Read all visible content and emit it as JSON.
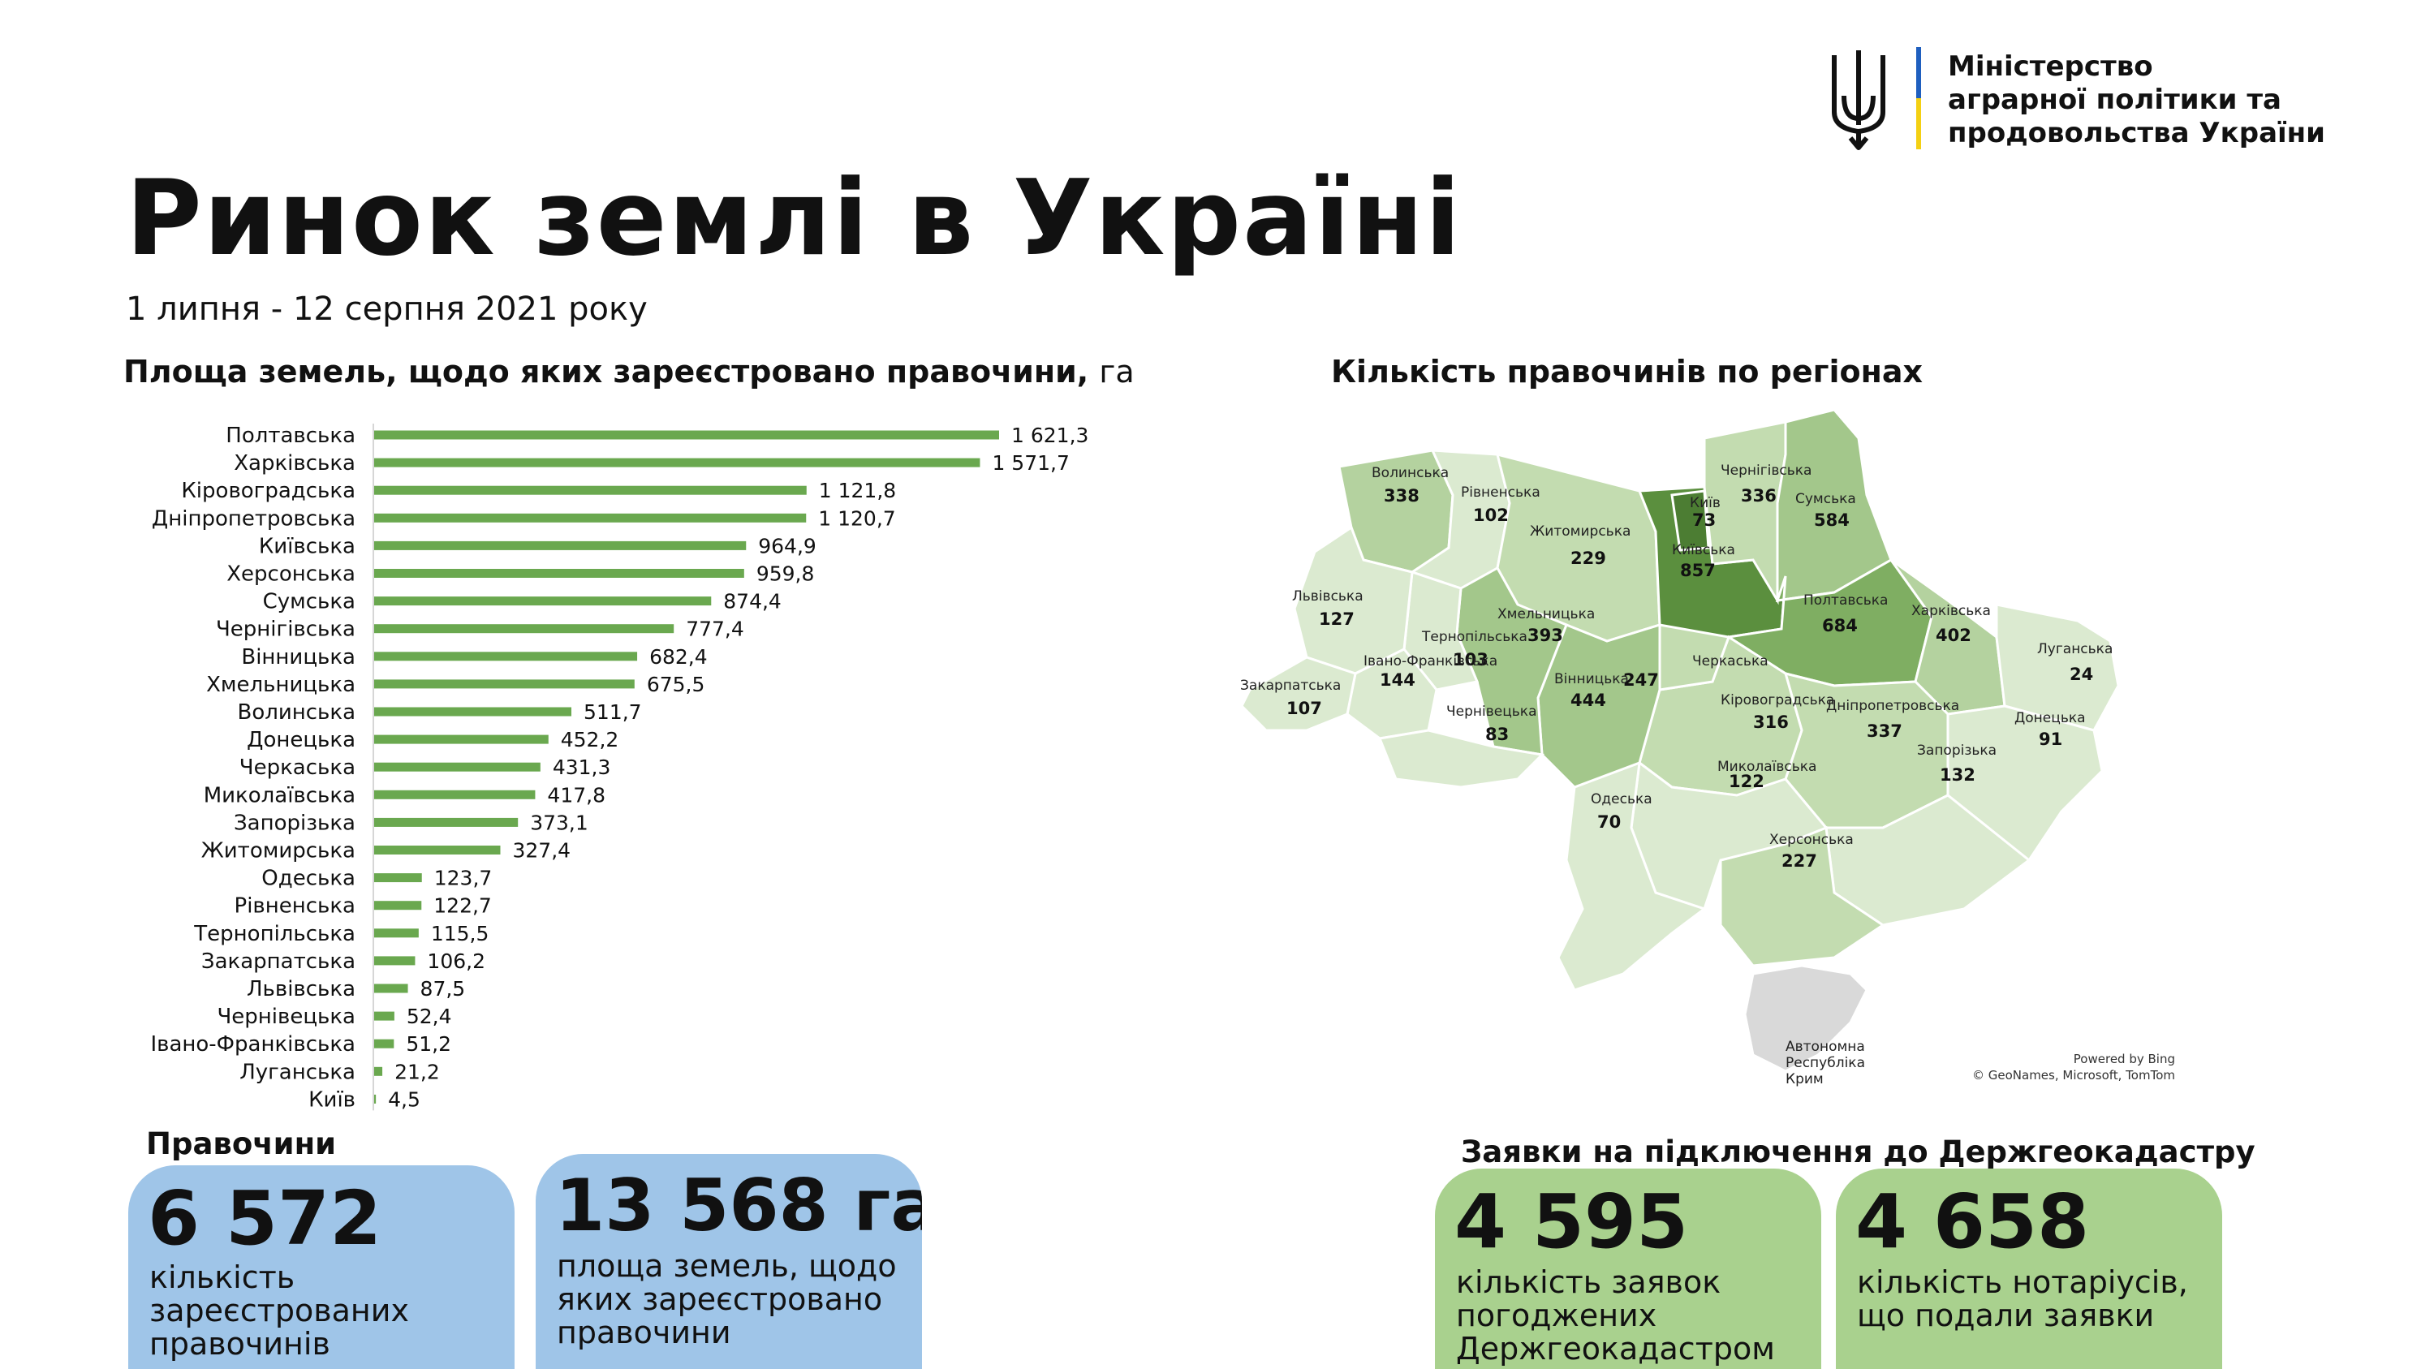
{
  "header": {
    "title": "Ринок землі в Україні",
    "period": "1 липня - 12 серпня 2021 року",
    "ministry_line1": "Міністерство",
    "ministry_line2": "аграрної політики та",
    "ministry_line3": "продовольства України"
  },
  "chart_data": {
    "type": "bar",
    "orientation": "horizontal",
    "title": "Площа земель, щодо яких зареєстровано правочини,",
    "unit": "га",
    "color": "#6aa84f",
    "categories": [
      "Полтавська",
      "Харківська",
      "Кіровоградська",
      "Дніпропетровська",
      "Київська",
      "Херсонська",
      "Сумська",
      "Чернігівська",
      "Вінницька",
      "Хмельницька",
      "Волинська",
      "Донецька",
      "Черкаська",
      "Миколаївська",
      "Запорізька",
      "Житомирська",
      "Одеська",
      "Рівненська",
      "Тернопільська",
      "Закарпатська",
      "Львівська",
      "Чернівецька",
      "Івано-Франківська",
      "Луганська",
      "Київ"
    ],
    "values": [
      1621.3,
      1571.7,
      1121.8,
      1120.7,
      964.9,
      959.8,
      874.4,
      777.4,
      682.4,
      675.5,
      511.7,
      452.2,
      431.3,
      417.8,
      373.1,
      327.4,
      123.7,
      122.7,
      115.5,
      106.2,
      87.5,
      52.4,
      51.2,
      21.2,
      4.5
    ],
    "value_labels": [
      "1 621,3",
      "1 571,7",
      "1 121,8",
      "1 120,7",
      "964,9",
      "959,8",
      "874,4",
      "777,4",
      "682,4",
      "675,5",
      "511,7",
      "452,2",
      "431,3",
      "417,8",
      "373,1",
      "327,4",
      "123,7",
      "122,7",
      "115,5",
      "106,2",
      "87,5",
      "52,4",
      "51,2",
      "21,2",
      "4,5"
    ]
  },
  "map": {
    "title": "Кількість правочинів по регіонах",
    "credit_line1": "Powered by Bing",
    "credit_line2": "© GeoNames, Microsoft, TomTom",
    "colors": {
      "light": "#dbead0",
      "mid1": "#c3dcb0",
      "mid2": "#a3c78b",
      "mid3": "#7fae62",
      "dark": "#5b8f3e",
      "crimea": "#d9d9d9"
    },
    "regions": [
      {
        "name": "Волинська",
        "value": "338"
      },
      {
        "name": "Рівненська",
        "value": "102"
      },
      {
        "name": "Житомирська",
        "value": "229"
      },
      {
        "name": "Київ",
        "value": "73"
      },
      {
        "name": "Київська",
        "value": "857"
      },
      {
        "name": "Чернігівська",
        "value": "336"
      },
      {
        "name": "Сумська",
        "value": "584"
      },
      {
        "name": "Львівська",
        "value": "127"
      },
      {
        "name": "Хмельницька",
        "value": "393"
      },
      {
        "name": "Тернопільська",
        "value": "103"
      },
      {
        "name": "Івано-Франківська",
        "value": "144"
      },
      {
        "name": "Закарпатська",
        "value": "107"
      },
      {
        "name": "Чернівецька",
        "value": "83"
      },
      {
        "name": "Вінницька",
        "value": "444"
      },
      {
        "name": "Черкаська",
        "value": "247"
      },
      {
        "name": "Полтавська",
        "value": "684"
      },
      {
        "name": "Харківська",
        "value": "402"
      },
      {
        "name": "Луганська",
        "value": "24"
      },
      {
        "name": "Донецька",
        "value": "91"
      },
      {
        "name": "Дніпропетровська",
        "value": "337"
      },
      {
        "name": "Кіровоградська",
        "value": "316"
      },
      {
        "name": "Запорізька",
        "value": "132"
      },
      {
        "name": "Миколаївська",
        "value": "122"
      },
      {
        "name": "Одеська",
        "value": "70"
      },
      {
        "name": "Херсонська",
        "value": "227"
      },
      {
        "name": "Автономна Республіка Крим",
        "value": ""
      }
    ],
    "crimea_line1": "Автономна",
    "crimea_line2": "Республіка",
    "crimea_line3": "Крим"
  },
  "deals": {
    "label": "Правочини",
    "count_value": "6 572",
    "count_desc": "кількість\nзареєстрованих\nправочинів",
    "area_value": "13 568 га",
    "area_desc": "площа земель, щодо\nяких зареєстровано\nправочини",
    "color": "#9fc5e8"
  },
  "applications": {
    "label": "Заявки на підключення до Держгеокадастру",
    "approved_value": "4 595",
    "approved_desc": "кількість заявок\nпогоджених\nДержгеокадастром",
    "notaries_value": "4 658",
    "notaries_desc": "кількість нотаріусів,\nщо подали заявки",
    "color": "#a9d18e"
  }
}
